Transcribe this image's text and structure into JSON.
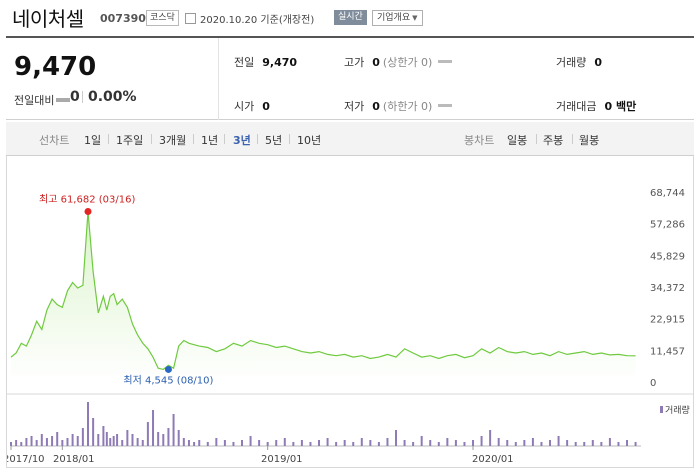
{
  "header": {
    "stock_name": "네이처셀",
    "stock_code": "007390",
    "market": "코스닥",
    "date_text": "2020.10.20 기준(개장전)",
    "realtime_label": "실시간",
    "company_info_label": "기업개요"
  },
  "summary": {
    "price": "9,470",
    "change_label": "전일대비",
    "change_value": "0",
    "change_pct": "0.00%",
    "prev_close_label": "전일",
    "prev_close": "9,470",
    "high_label": "고가",
    "high": "0",
    "high_note": "(상한가 0)",
    "volume_label": "거래량",
    "volume": "0",
    "open_label": "시가",
    "open": "0",
    "low_label": "저가",
    "low": "0",
    "low_note": "(하한가 0)",
    "amount_label": "거래대금",
    "amount": "0 백만"
  },
  "tabs": {
    "line_chart_label": "선차트",
    "periods": [
      "1일",
      "1주일",
      "3개월",
      "1년",
      "3년",
      "5년",
      "10년"
    ],
    "selected_period": "3년",
    "candle_chart_label": "봉차트",
    "candles": [
      "일봉",
      "주봉",
      "월봉"
    ]
  },
  "chart_data": {
    "type": "area",
    "title": "",
    "y_ticks": [
      "68,744",
      "57,286",
      "45,829",
      "34,372",
      "22,915",
      "11,457",
      "0"
    ],
    "ylim": [
      0,
      68744
    ],
    "x_tick_labels": [
      "2017/10",
      "2018/01",
      "2019/01",
      "2020/01"
    ],
    "x_ticks_positions_months": [
      0,
      3,
      15,
      27
    ],
    "x_range_months": [
      0,
      36.7
    ],
    "x_months": [
      0,
      0.3,
      0.6,
      0.9,
      1.2,
      1.5,
      1.8,
      2.1,
      2.4,
      2.7,
      3.0,
      3.3,
      3.6,
      3.9,
      4.2,
      4.5,
      4.8,
      5.1,
      5.4,
      5.6,
      5.8,
      6.0,
      6.2,
      6.5,
      6.8,
      7.1,
      7.4,
      7.7,
      8.0,
      8.3,
      8.6,
      8.9,
      9.2,
      9.5,
      9.8,
      10.1,
      10.4,
      10.7,
      11.0,
      11.5,
      12.0,
      12.5,
      13.0,
      13.5,
      14.0,
      14.5,
      15.0,
      15.5,
      16.0,
      16.5,
      17.0,
      17.5,
      18.0,
      18.5,
      19.0,
      19.5,
      20.0,
      20.5,
      21.0,
      21.5,
      22.0,
      22.5,
      23.0,
      23.5,
      24.0,
      24.5,
      25.0,
      25.5,
      26.0,
      26.5,
      27.0,
      27.5,
      28.0,
      28.5,
      29.0,
      29.5,
      30.0,
      30.5,
      31.0,
      31.5,
      32.0,
      32.5,
      33.0,
      33.5,
      34.0,
      34.5,
      35.0,
      35.5,
      36.0,
      36.5
    ],
    "prices": [
      9000,
      10500,
      14000,
      13000,
      17000,
      22000,
      19000,
      26000,
      30000,
      28000,
      27000,
      33000,
      36000,
      34000,
      35000,
      61682,
      40000,
      25000,
      31000,
      26000,
      31000,
      32000,
      28000,
      30000,
      27000,
      21000,
      17000,
      14000,
      12000,
      9000,
      5000,
      4545,
      6000,
      5000,
      13000,
      15000,
      14000,
      13500,
      13000,
      12500,
      11000,
      12000,
      14000,
      13000,
      15000,
      14000,
      13500,
      12500,
      13000,
      12000,
      11000,
      10500,
      11000,
      10000,
      9500,
      10000,
      9000,
      9500,
      8500,
      9000,
      10000,
      9000,
      12000,
      10500,
      9000,
      9500,
      8500,
      9500,
      10000,
      8800,
      9500,
      12000,
      10500,
      12500,
      11000,
      10500,
      11000,
      10000,
      10500,
      9500,
      11000,
      10000,
      10500,
      11000,
      10000,
      10500,
      9800,
      10000,
      9500,
      9470
    ],
    "volumes": [
      2,
      3,
      2,
      4,
      5,
      3,
      6,
      4,
      5,
      7,
      3,
      4,
      6,
      5,
      9,
      22,
      14,
      6,
      10,
      7,
      4,
      5,
      6,
      3,
      8,
      6,
      4,
      3,
      12,
      18,
      7,
      6,
      9,
      16,
      8,
      4,
      3,
      2,
      3,
      2,
      4,
      3,
      2,
      3,
      5,
      3,
      2,
      3,
      4,
      2,
      3,
      2,
      3,
      4,
      2,
      3,
      2,
      4,
      3,
      2,
      4,
      8,
      3,
      2,
      5,
      3,
      2,
      4,
      3,
      2,
      3,
      5,
      8,
      4,
      3,
      2,
      3,
      4,
      2,
      3,
      5,
      3,
      2,
      2,
      3,
      2,
      4,
      2,
      3,
      2
    ],
    "high_marker": {
      "label": "최고 61,682 (03/16)",
      "value": 61682,
      "month": 4.5
    },
    "low_marker": {
      "label": "최저 4,545 (08/10)",
      "value": 4545,
      "month": 9.2
    },
    "volume_legend": "거래량"
  },
  "colors": {
    "line": "#6fca3f",
    "fill_top": "#dbf3cb",
    "volume_bar": "#8e7bb6",
    "high_marker": "#e52424",
    "low_marker": "#2b68c6",
    "selected_tab": "#3a62b0"
  }
}
